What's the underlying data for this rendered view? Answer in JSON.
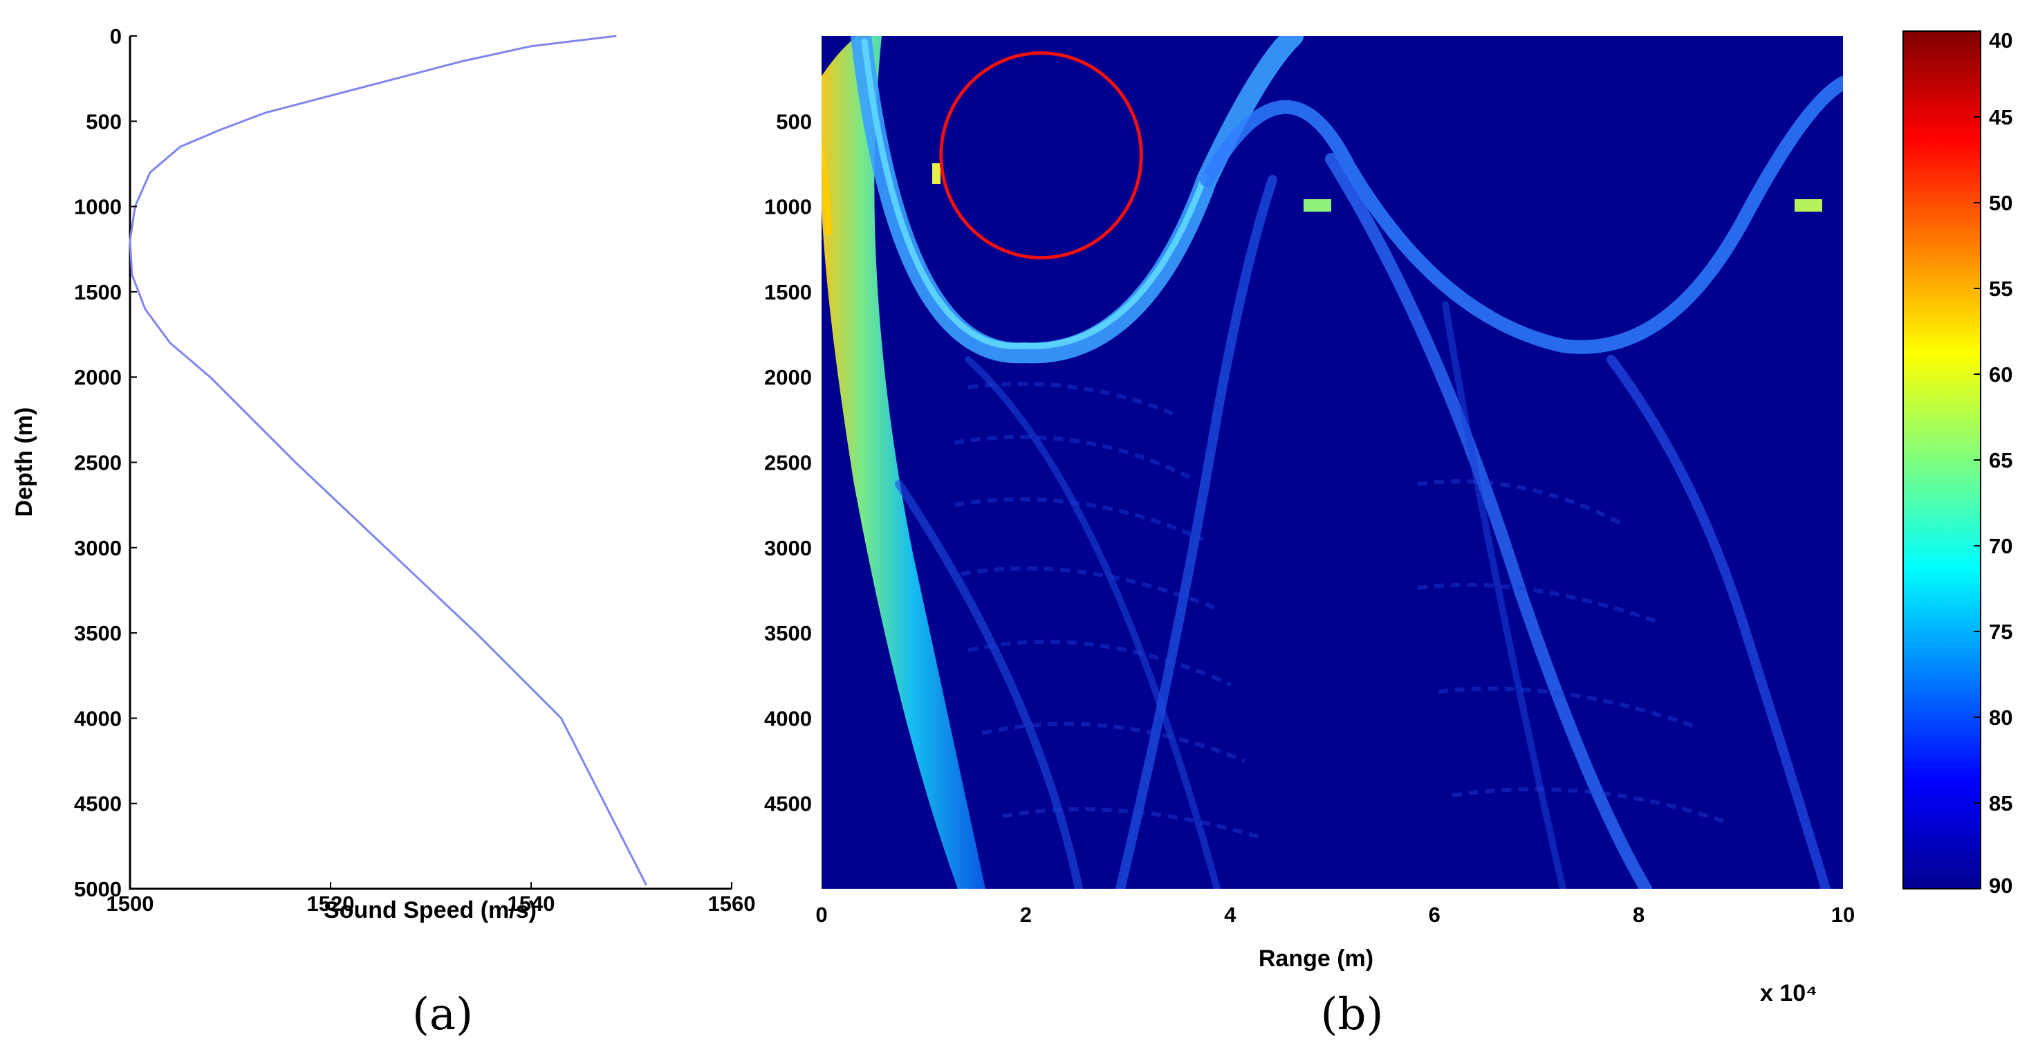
{
  "chart_data": [
    {
      "panel_label": "(a)",
      "type": "line",
      "xlabel": "Sound Speed (m/s)",
      "ylabel": "Depth (m)",
      "xlim": [
        1500,
        1560
      ],
      "ylim": [
        5000,
        0
      ],
      "y_inverted": true,
      "xticks": [
        "1500",
        "1520",
        "1540",
        "1560"
      ],
      "yticks": [
        "0",
        "500",
        "1000",
        "1500",
        "2000",
        "2500",
        "3000",
        "3500",
        "4000",
        "4500",
        "5000"
      ],
      "line_color": "#7f86f0",
      "series": [
        {
          "x": [
            1548.5,
            1540,
            1533,
            1526.5,
            1520,
            1513.5,
            1509,
            1505,
            1502,
            1500.5,
            1500,
            1500.2,
            1501.5,
            1504,
            1508,
            1516.5,
            1525.5,
            1534.5,
            1543,
            1551.5
          ],
          "y": [
            0,
            60,
            150,
            250,
            350,
            450,
            550,
            650,
            800,
            1000,
            1200,
            1400,
            1600,
            1800,
            2000,
            2500,
            3000,
            3500,
            4000,
            4980
          ]
        }
      ]
    },
    {
      "panel_label": "(b)",
      "type": "heatmap",
      "xlabel": "Range (m)",
      "ylabel": "",
      "x_multiplier": "x 10⁴",
      "xlim": [
        0,
        10
      ],
      "ylim": [
        5000,
        0
      ],
      "xticks": [
        "0",
        "2",
        "4",
        "6",
        "8",
        "10"
      ],
      "yticks": [
        "500",
        "1000",
        "1500",
        "2000",
        "2500",
        "3000",
        "3500",
        "4000",
        "4500"
      ],
      "colorbar": {
        "ticks": [
          "40",
          "45",
          "50",
          "55",
          "60",
          "65",
          "70",
          "75",
          "80",
          "85",
          "90"
        ],
        "range": [
          40,
          90
        ],
        "colormap": "jet"
      },
      "background_level": 90,
      "annotation": {
        "shape": "ellipse",
        "color": "#ee1111",
        "center_range_1e4m": 2.15,
        "center_depth_m": 700,
        "range_half_width_1e4m": 0.98,
        "depth_half_height_m": 600
      }
    }
  ]
}
